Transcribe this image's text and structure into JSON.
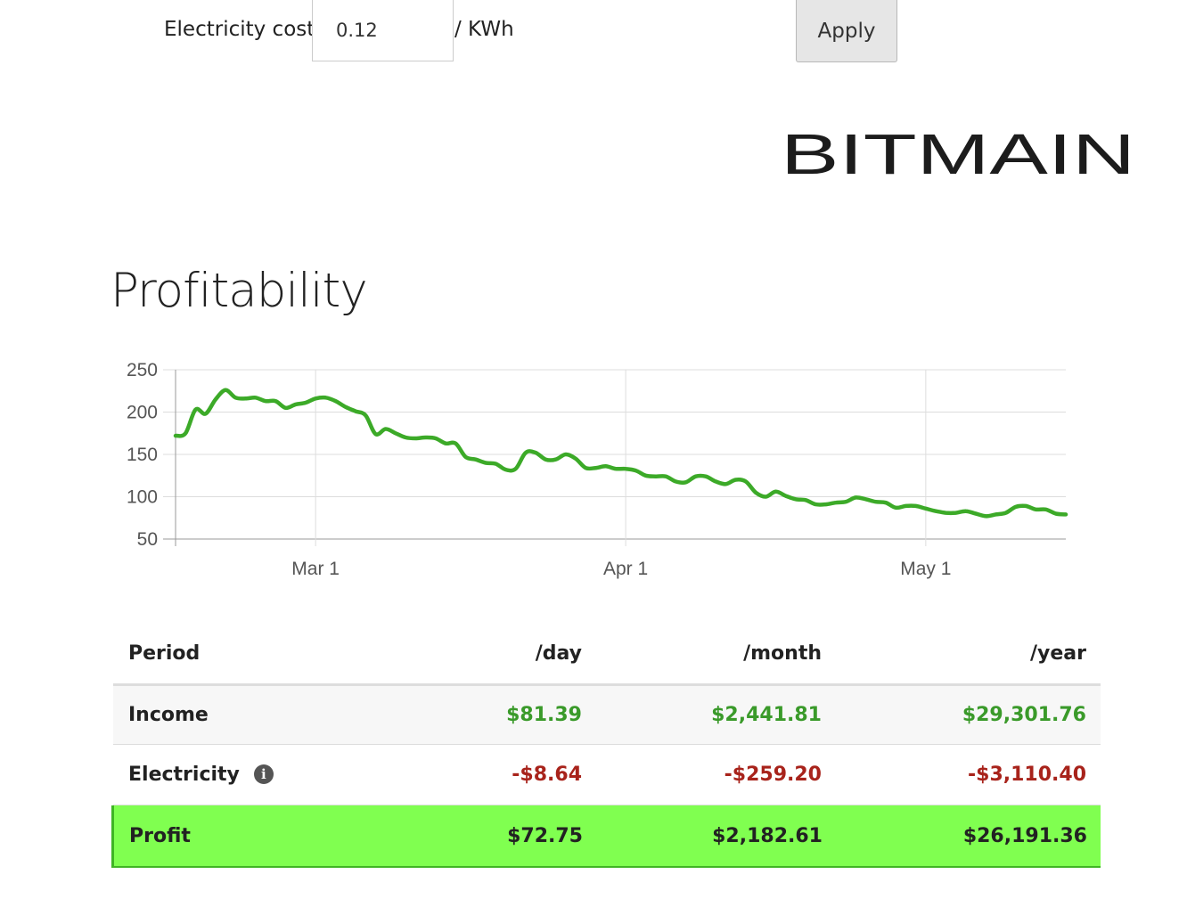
{
  "settings": {
    "cost_label": "Electricity cost",
    "cost_value": "0.12",
    "cost_unit": "/ KWh",
    "apply_label": "Apply"
  },
  "logo": {
    "text": "BITMAIN"
  },
  "title": "Profitability",
  "chart_data": {
    "type": "line",
    "x_type": "date",
    "x": [
      "Feb 15",
      "Feb 16",
      "Feb 17",
      "Feb 18",
      "Feb 19",
      "Feb 20",
      "Feb 21",
      "Feb 22",
      "Feb 23",
      "Feb 24",
      "Feb 25",
      "Feb 26",
      "Feb 27",
      "Feb 28",
      "Mar 1",
      "Mar 2",
      "Mar 3",
      "Mar 4",
      "Mar 5",
      "Mar 6",
      "Mar 7",
      "Mar 8",
      "Mar 9",
      "Mar 10",
      "Mar 11",
      "Mar 12",
      "Mar 13",
      "Mar 14",
      "Mar 15",
      "Mar 16",
      "Mar 17",
      "Mar 18",
      "Mar 19",
      "Mar 20",
      "Mar 21",
      "Mar 22",
      "Mar 23",
      "Mar 24",
      "Mar 25",
      "Mar 26",
      "Mar 27",
      "Mar 28",
      "Mar 29",
      "Mar 30",
      "Mar 31",
      "Apr 1",
      "Apr 2",
      "Apr 3",
      "Apr 4",
      "Apr 5",
      "Apr 6",
      "Apr 7",
      "Apr 8",
      "Apr 9",
      "Apr 10",
      "Apr 11",
      "Apr 12",
      "Apr 13",
      "Apr 14",
      "Apr 15",
      "Apr 16",
      "Apr 17",
      "Apr 18",
      "Apr 19",
      "Apr 20",
      "Apr 21",
      "Apr 22",
      "Apr 23",
      "Apr 24",
      "Apr 25",
      "Apr 26",
      "Apr 27",
      "Apr 28",
      "Apr 29",
      "Apr 30",
      "May 1",
      "May 2",
      "May 3",
      "May 4",
      "May 5",
      "May 6",
      "May 7",
      "May 8",
      "May 9",
      "May 10",
      "May 11",
      "May 12",
      "May 13",
      "May 14",
      "May 15"
    ],
    "series": [
      {
        "values": [
          172,
          175,
          203,
          198,
          215,
          226,
          217,
          216,
          217,
          213,
          213,
          205,
          209,
          211,
          216,
          217,
          213,
          206,
          201,
          196,
          174,
          180,
          175,
          170,
          169,
          170,
          169,
          163,
          163,
          147,
          144,
          140,
          139,
          132,
          133,
          152,
          152,
          144,
          144,
          150,
          145,
          134,
          134,
          136,
          133,
          133,
          131,
          125,
          124,
          124,
          118,
          117,
          124,
          124,
          118,
          115,
          120,
          118,
          105,
          100,
          106,
          101,
          97,
          96,
          91,
          91,
          93,
          94,
          99,
          97,
          94,
          93,
          87,
          89,
          89,
          86,
          83,
          81,
          81,
          83,
          80,
          77,
          79,
          81,
          88,
          89,
          85,
          85,
          80,
          79
        ]
      }
    ],
    "x_ticks": [
      "Mar 1",
      "Apr 1",
      "May 1"
    ],
    "y_ticks": [
      50,
      100,
      150,
      200,
      250
    ],
    "ylim": [
      50,
      250
    ],
    "grid": true,
    "line_color": "#3caa28"
  },
  "table": {
    "headers": [
      "Period",
      "/day",
      "/month",
      "/year"
    ],
    "income": {
      "label": "Income",
      "day": "$81.39",
      "month": "$2,441.81",
      "year": "$29,301.76"
    },
    "electricity": {
      "label": "Electricity",
      "day": "-$8.64",
      "month": "-$259.20",
      "year": "-$3,110.40"
    },
    "profit": {
      "label": "Profit",
      "day": "$72.75",
      "month": "$2,182.61",
      "year": "$26,191.36"
    }
  },
  "colors": {
    "income": "#3a9a2a",
    "electricity": "#a8231b",
    "profit_bg": "#80ff50"
  }
}
